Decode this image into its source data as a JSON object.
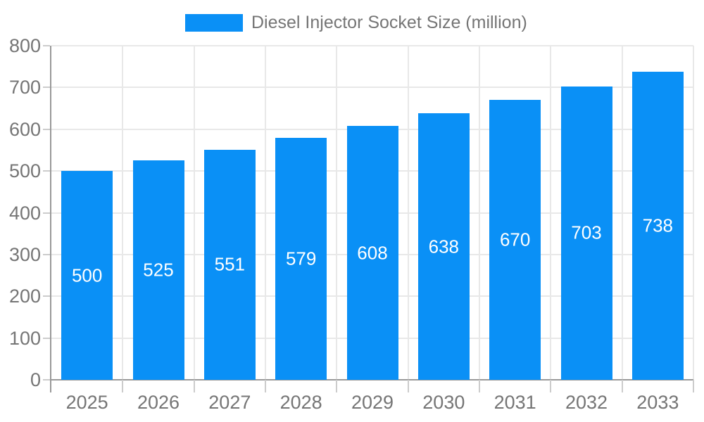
{
  "legend": {
    "label": "Diesel Injector Socket Size (million)"
  },
  "chart_data": {
    "type": "bar",
    "title": "Diesel Injector Socket Size (million)",
    "series_name": "Diesel Injector Socket Size (million)",
    "categories": [
      "2025",
      "2026",
      "2027",
      "2028",
      "2029",
      "2030",
      "2031",
      "2032",
      "2033"
    ],
    "values": [
      500,
      525,
      551,
      579,
      608,
      638,
      670,
      703,
      738
    ],
    "xlabel": "",
    "ylabel": "",
    "ylim": [
      0,
      800
    ],
    "ytick_step": 100,
    "yticks": [
      0,
      100,
      200,
      300,
      400,
      500,
      600,
      700,
      800
    ],
    "grid": true,
    "legend_position": "top",
    "bar_color": "#0a90f6",
    "value_label_color": "#ffffff",
    "axis_color": "#999999",
    "tick_color": "#cccccc",
    "grid_color": "#e8e8e8",
    "text_color": "#757575"
  }
}
